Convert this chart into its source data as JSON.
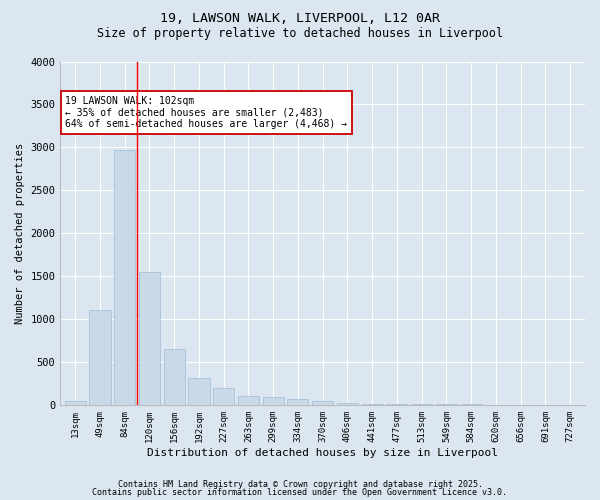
{
  "title1": "19, LAWSON WALK, LIVERPOOL, L12 0AR",
  "title2": "Size of property relative to detached houses in Liverpool",
  "xlabel": "Distribution of detached houses by size in Liverpool",
  "ylabel": "Number of detached properties",
  "categories": [
    "13sqm",
    "49sqm",
    "84sqm",
    "120sqm",
    "156sqm",
    "192sqm",
    "227sqm",
    "263sqm",
    "299sqm",
    "334sqm",
    "370sqm",
    "406sqm",
    "441sqm",
    "477sqm",
    "513sqm",
    "549sqm",
    "584sqm",
    "620sqm",
    "656sqm",
    "691sqm",
    "727sqm"
  ],
  "values": [
    50,
    1100,
    2970,
    1550,
    650,
    310,
    195,
    105,
    90,
    65,
    40,
    20,
    15,
    10,
    5,
    5,
    5,
    3,
    2,
    2,
    1
  ],
  "bar_color": "#c9d9e8",
  "bar_edge_color": "#a8c0d8",
  "red_line_x": 2.5,
  "annotation_text": "19 LAWSON WALK: 102sqm\n← 35% of detached houses are smaller (2,483)\n64% of semi-detached houses are larger (4,468) →",
  "annotation_box_color": "#ffffff",
  "annotation_box_edge": "#cc0000",
  "background_color": "#dce6f0",
  "plot_bg_color": "#dce6f0",
  "footer1": "Contains HM Land Registry data © Crown copyright and database right 2025.",
  "footer2": "Contains public sector information licensed under the Open Government Licence v3.0.",
  "ylim": [
    0,
    4000
  ],
  "yticks": [
    0,
    500,
    1000,
    1500,
    2000,
    2500,
    3000,
    3500,
    4000
  ]
}
